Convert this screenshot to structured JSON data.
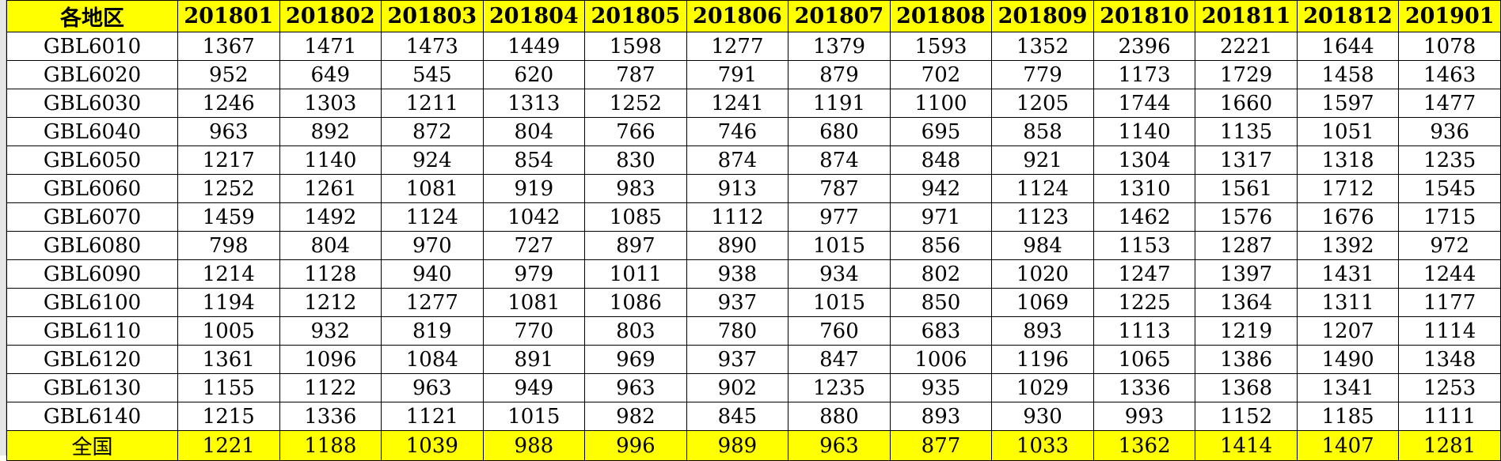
{
  "table": {
    "columns": [
      "各地区",
      "201801",
      "201802",
      "201803",
      "201804",
      "201805",
      "201806",
      "201807",
      "201808",
      "201809",
      "201810",
      "201811",
      "201812",
      "201901"
    ],
    "rows": [
      [
        "GBL6010",
        "1367",
        "1471",
        "1473",
        "1449",
        "1598",
        "1277",
        "1379",
        "1593",
        "1352",
        "2396",
        "2221",
        "1644",
        "1078"
      ],
      [
        "GBL6020",
        "952",
        "649",
        "545",
        "620",
        "787",
        "791",
        "879",
        "702",
        "779",
        "1173",
        "1729",
        "1458",
        "1463"
      ],
      [
        "GBL6030",
        "1246",
        "1303",
        "1211",
        "1313",
        "1252",
        "1241",
        "1191",
        "1100",
        "1205",
        "1744",
        "1660",
        "1597",
        "1477"
      ],
      [
        "GBL6040",
        "963",
        "892",
        "872",
        "804",
        "766",
        "746",
        "680",
        "695",
        "858",
        "1140",
        "1135",
        "1051",
        "936"
      ],
      [
        "GBL6050",
        "1217",
        "1140",
        "924",
        "854",
        "830",
        "874",
        "874",
        "848",
        "921",
        "1304",
        "1317",
        "1318",
        "1235"
      ],
      [
        "GBL6060",
        "1252",
        "1261",
        "1081",
        "919",
        "983",
        "913",
        "787",
        "942",
        "1124",
        "1310",
        "1561",
        "1712",
        "1545"
      ],
      [
        "GBL6070",
        "1459",
        "1492",
        "1124",
        "1042",
        "1085",
        "1112",
        "977",
        "971",
        "1123",
        "1462",
        "1576",
        "1676",
        "1715"
      ],
      [
        "GBL6080",
        "798",
        "804",
        "970",
        "727",
        "897",
        "890",
        "1015",
        "856",
        "984",
        "1153",
        "1287",
        "1392",
        "972"
      ],
      [
        "GBL6090",
        "1214",
        "1128",
        "940",
        "979",
        "1011",
        "938",
        "934",
        "802",
        "1020",
        "1247",
        "1397",
        "1431",
        "1244"
      ],
      [
        "GBL6100",
        "1194",
        "1212",
        "1277",
        "1081",
        "1086",
        "937",
        "1015",
        "850",
        "1069",
        "1225",
        "1364",
        "1311",
        "1177"
      ],
      [
        "GBL6110",
        "1005",
        "932",
        "819",
        "770",
        "803",
        "780",
        "760",
        "683",
        "893",
        "1113",
        "1219",
        "1207",
        "1114"
      ],
      [
        "GBL6120",
        "1361",
        "1096",
        "1084",
        "891",
        "969",
        "937",
        "847",
        "1006",
        "1196",
        "1065",
        "1386",
        "1490",
        "1348"
      ],
      [
        "GBL6130",
        "1155",
        "1122",
        "963",
        "949",
        "963",
        "902",
        "1235",
        "935",
        "1029",
        "1336",
        "1368",
        "1341",
        "1253"
      ],
      [
        "GBL6140",
        "1215",
        "1336",
        "1121",
        "1015",
        "982",
        "845",
        "880",
        "893",
        "930",
        "993",
        "1152",
        "1185",
        "1111"
      ]
    ],
    "total_row": [
      "全国",
      "1221",
      "1188",
      "1039",
      "988",
      "996",
      "989",
      "963",
      "877",
      "1033",
      "1362",
      "1414",
      "1407",
      "1281"
    ]
  },
  "colors": {
    "header_fill": "#ffff00",
    "total_fill": "#ffff00",
    "grid_line": "#000000"
  }
}
